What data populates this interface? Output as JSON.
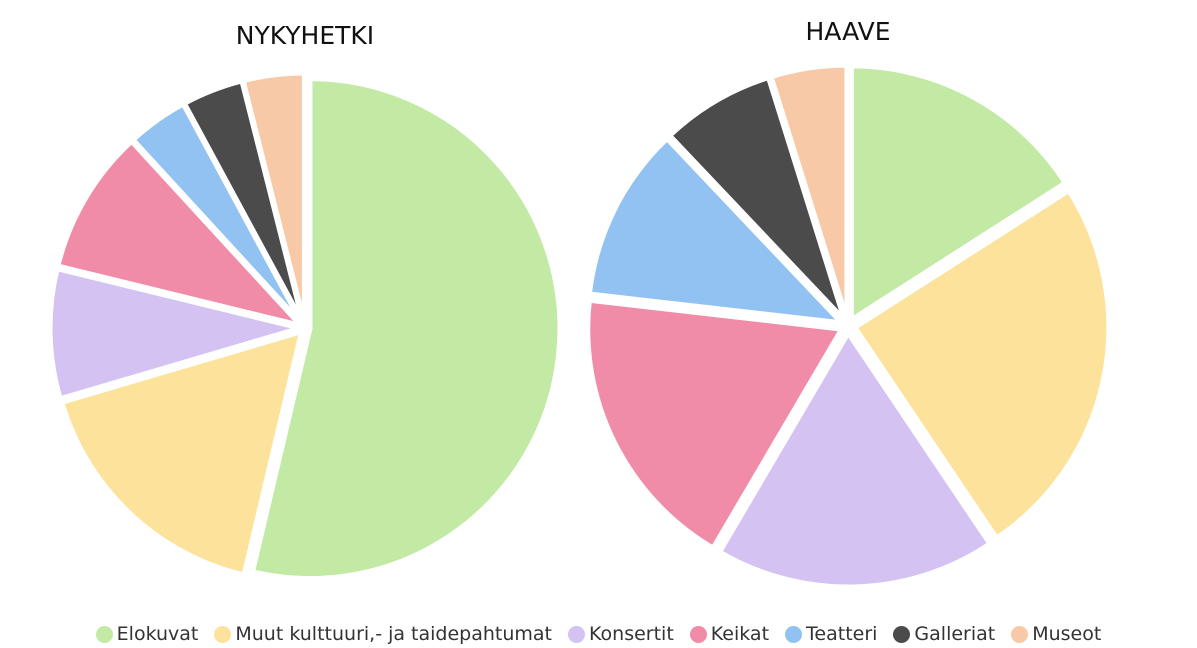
{
  "chart_data": [
    {
      "type": "pie",
      "title": "NYKYHETKI",
      "categories": [
        "Elokuvat",
        "Muut kulttuuri,- ja taidepahtumat",
        "Konsertit",
        "Keikat",
        "Teatteri",
        "Galleriat",
        "Museot"
      ],
      "values": [
        54.5,
        17.0,
        8.5,
        9.5,
        4.0,
        4.0,
        4.0
      ]
    },
    {
      "type": "pie",
      "title": "HAAVE",
      "categories": [
        "Elokuvat",
        "Muut kulttuuri,- ja taidepahtumat",
        "Konsertit",
        "Keikat",
        "Teatteri",
        "Galleriat",
        "Museot"
      ],
      "values": [
        16.5,
        25.5,
        18.5,
        19.0,
        11.5,
        7.5,
        5.0
      ]
    }
  ],
  "legend": [
    {
      "label": "Elokuvat",
      "color": "#c2eaa4"
    },
    {
      "label": "Muut kulttuuri,- ja taidepahtumat",
      "color": "#fce29a"
    },
    {
      "label": "Konsertit",
      "color": "#d3c2f2"
    },
    {
      "label": "Keikat",
      "color": "#f08ca8"
    },
    {
      "label": "Teatteri",
      "color": "#92c2f2"
    },
    {
      "label": "Galleriat",
      "color": "#4b4b4b"
    },
    {
      "label": "Museot",
      "color": "#f8c9a6"
    }
  ],
  "legend_position": "bottom"
}
